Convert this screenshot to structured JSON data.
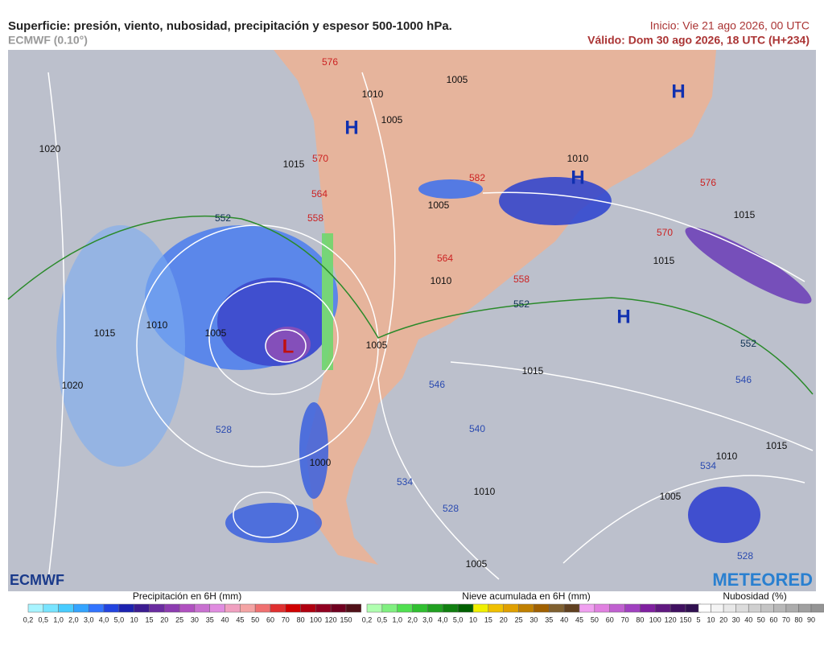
{
  "header": {
    "title": "Superficie: presión, viento, nubosidad, precipitación y espesor 500-1000 hPa.",
    "model": "ECMWF (0.10°)",
    "init": "Inicio: Vie 21 ago 2026, 00 UTC",
    "valid": "Válido: Dom 30 ago 2026, 18 UTC (H+234)"
  },
  "map": {
    "isobars": [
      "1020",
      "1015",
      "1005",
      "1010",
      "1005",
      "1010",
      "1005",
      "1015",
      "1015",
      "1010",
      "1015",
      "1010",
      "1005",
      "1005",
      "1015",
      "1020",
      "1000",
      "1010",
      "1005",
      "1010",
      "1015",
      "1005"
    ],
    "thickness_red": [
      "576",
      "570",
      "564",
      "558",
      "582",
      "570",
      "576",
      "564",
      "558"
    ],
    "thickness_green": [
      "552",
      "552",
      "552"
    ],
    "thickness_blue": [
      "546",
      "546",
      "540",
      "534",
      "534",
      "528",
      "528",
      "528"
    ],
    "highs": [
      "H",
      "H",
      "H",
      "H"
    ],
    "lows": [
      "L"
    ]
  },
  "logos": {
    "left": "ECMWF",
    "right": "METEORED"
  },
  "legends": [
    {
      "title": "Precipitación en 6H (mm)",
      "labels": [
        "0,2",
        "0,5",
        "1,0",
        "2,0",
        "3,0",
        "4,0",
        "5,0",
        "10",
        "15",
        "20",
        "25",
        "30",
        "35",
        "40",
        "45",
        "50",
        "60",
        "70",
        "80",
        "100",
        "120",
        "150"
      ],
      "colors": [
        "#a8f4ff",
        "#78e4ff",
        "#48ccff",
        "#34a4ff",
        "#3274ff",
        "#2244e0",
        "#1c22b0",
        "#3c1c90",
        "#6a2ca0",
        "#8c3cb0",
        "#b050c0",
        "#c870d0",
        "#e08ce0",
        "#f0a0c0",
        "#f4a4a4",
        "#f07070",
        "#e03030",
        "#d00000",
        "#b00010",
        "#900020",
        "#700020",
        "#501018"
      ]
    },
    {
      "title": "Nieve acumulada en 6H (mm)",
      "labels": [
        "0,2",
        "0,5",
        "1,0",
        "2,0",
        "3,0",
        "4,0",
        "5,0",
        "10",
        "15",
        "20",
        "25",
        "30",
        "35",
        "40",
        "45",
        "50",
        "60",
        "70",
        "80",
        "100",
        "120",
        "150"
      ],
      "colors": [
        "#b0ffb0",
        "#80f080",
        "#50e050",
        "#30c030",
        "#20a020",
        "#108010",
        "#006000",
        "#f0f000",
        "#f0c000",
        "#e0a000",
        "#c08000",
        "#a06000",
        "#806030",
        "#604020",
        "#f0a0f0",
        "#e080e0",
        "#c060d0",
        "#a040c0",
        "#8020a0",
        "#601880",
        "#401060",
        "#301050"
      ]
    },
    {
      "title": "Nubosidad (%)",
      "labels": [
        "5",
        "10",
        "20",
        "30",
        "40",
        "50",
        "60",
        "70",
        "80",
        "90"
      ],
      "colors": [
        "#ffffff",
        "#f4f4f4",
        "#e8e8e8",
        "#dcdcdc",
        "#d0d0d0",
        "#c4c4c4",
        "#b8b8b8",
        "#acacac",
        "#a0a0a0",
        "#949494"
      ]
    }
  ]
}
